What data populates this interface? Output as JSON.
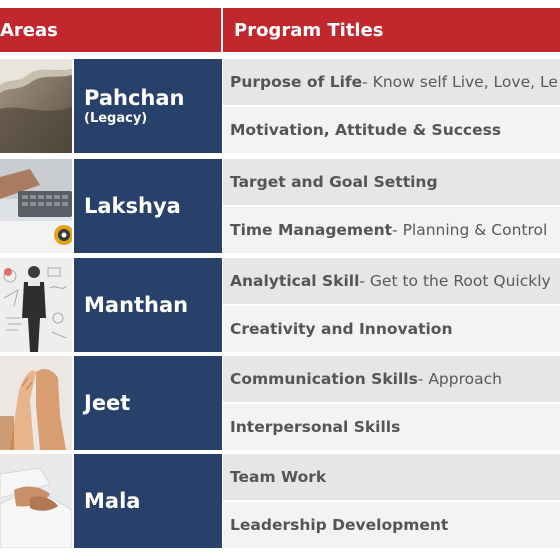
{
  "header": {
    "areas_label": "Areas",
    "titles_label": "Program Titles"
  },
  "rows": [
    {
      "area": "Pahchan",
      "sub": "(Legacy)",
      "image": "beach-shoreline-photo",
      "programs": [
        {
          "title": "Purpose of Life",
          "desc": " - Know self Live, Love, Le"
        },
        {
          "title": "Motivation, Attitude & Success",
          "desc": ""
        }
      ]
    },
    {
      "area": "Lakshya",
      "sub": "",
      "image": "laptop-target-photo",
      "programs": [
        {
          "title": "Target and Goal Setting",
          "desc": ""
        },
        {
          "title": "Time Management",
          "desc": " - Planning & Control"
        }
      ]
    },
    {
      "area": "Manthan",
      "sub": "",
      "image": "man-at-sketch-board-photo",
      "programs": [
        {
          "title": "Analytical Skill",
          "desc": " - Get to the Root Quickly"
        },
        {
          "title": "Creativity and Innovation",
          "desc": ""
        }
      ]
    },
    {
      "area": "Jeet",
      "sub": "",
      "image": "hands-high-five-photo",
      "programs": [
        {
          "title": "Communication Skills",
          "desc": " - Approach"
        },
        {
          "title": "Interpersonal Skills",
          "desc": ""
        }
      ]
    },
    {
      "area": "Mala",
      "sub": "",
      "image": "handshake-photo",
      "programs": [
        {
          "title": "Team Work",
          "desc": ""
        },
        {
          "title": "Leadership Development",
          "desc": ""
        }
      ]
    }
  ],
  "colors": {
    "header_red": "#c1272d",
    "area_navy": "#27416a",
    "row_light": "#e6e6e6",
    "row_lighter": "#f3f3f3"
  }
}
